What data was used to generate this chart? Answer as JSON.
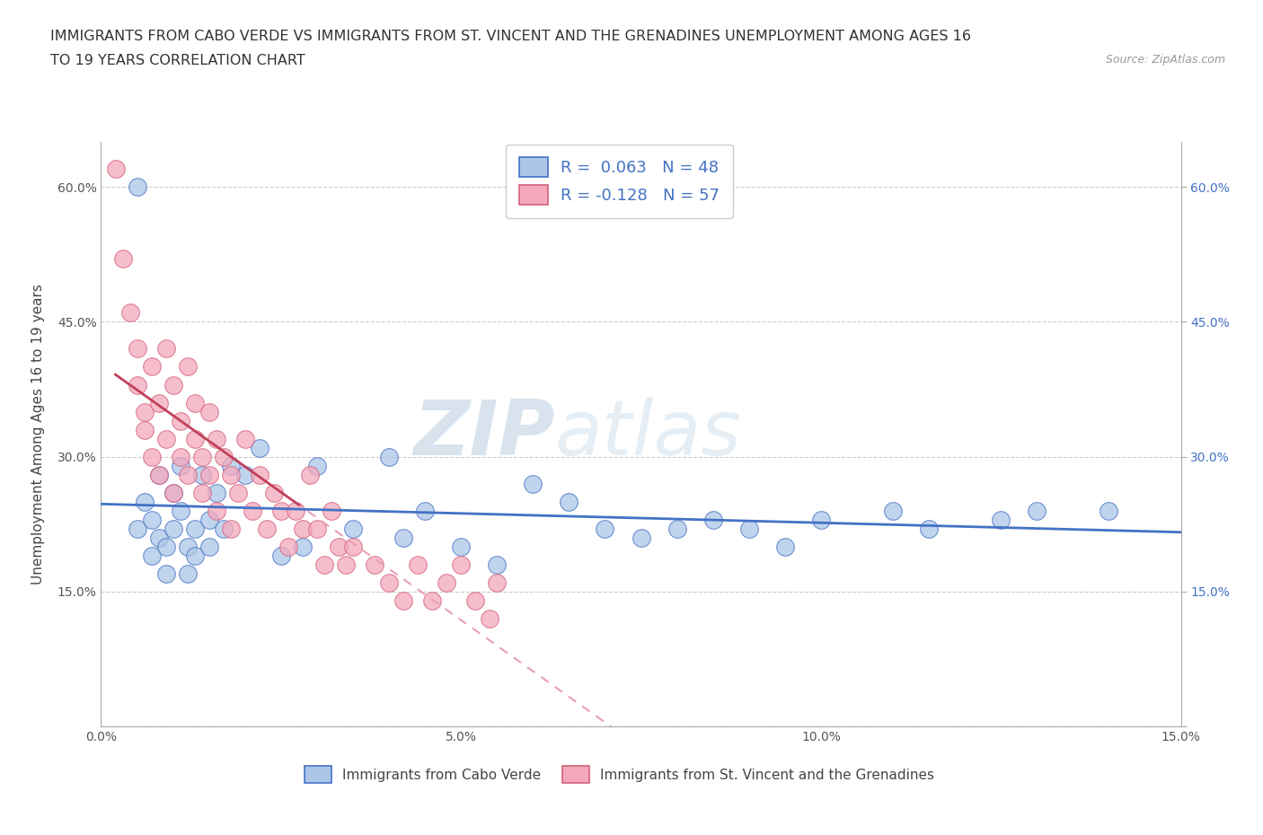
{
  "title_line1": "IMMIGRANTS FROM CABO VERDE VS IMMIGRANTS FROM ST. VINCENT AND THE GRENADINES UNEMPLOYMENT AMONG AGES 16",
  "title_line2": "TO 19 YEARS CORRELATION CHART",
  "source": "Source: ZipAtlas.com",
  "ylabel": "Unemployment Among Ages 16 to 19 years",
  "xlim": [
    0.0,
    0.15
  ],
  "ylim": [
    0.0,
    0.65
  ],
  "xticks": [
    0.0,
    0.05,
    0.1,
    0.15
  ],
  "xticklabels": [
    "0.0%",
    "5.0%",
    "10.0%",
    "15.0%"
  ],
  "yticks": [
    0.0,
    0.15,
    0.3,
    0.45,
    0.6
  ],
  "yticklabels": [
    "",
    "15.0%",
    "30.0%",
    "45.0%",
    "60.0%"
  ],
  "watermark_zip": "ZIP",
  "watermark_atlas": "atlas",
  "cabo_verde_R": 0.063,
  "cabo_verde_N": 48,
  "stv_R": -0.128,
  "stv_N": 57,
  "cabo_verde_color": "#adc6e8",
  "stv_color": "#f4a8bc",
  "trend_cabo_color": "#4472c4",
  "trend_stv_solid_color": "#c0415a",
  "trend_stv_dash_color": "#e8a0b0",
  "cabo_verde_x": [
    0.005,
    0.005,
    0.006,
    0.007,
    0.007,
    0.008,
    0.008,
    0.009,
    0.009,
    0.01,
    0.01,
    0.011,
    0.011,
    0.012,
    0.012,
    0.013,
    0.013,
    0.014,
    0.015,
    0.015,
    0.016,
    0.017,
    0.018,
    0.02,
    0.022,
    0.025,
    0.028,
    0.03,
    0.035,
    0.04,
    0.042,
    0.045,
    0.05,
    0.055,
    0.06,
    0.065,
    0.07,
    0.075,
    0.08,
    0.085,
    0.09,
    0.095,
    0.1,
    0.11,
    0.115,
    0.125,
    0.13,
    0.14
  ],
  "cabo_verde_y": [
    0.6,
    0.22,
    0.25,
    0.23,
    0.19,
    0.28,
    0.21,
    0.2,
    0.17,
    0.26,
    0.22,
    0.29,
    0.24,
    0.2,
    0.17,
    0.22,
    0.19,
    0.28,
    0.23,
    0.2,
    0.26,
    0.22,
    0.29,
    0.28,
    0.31,
    0.19,
    0.2,
    0.29,
    0.22,
    0.3,
    0.21,
    0.24,
    0.2,
    0.18,
    0.27,
    0.25,
    0.22,
    0.21,
    0.22,
    0.23,
    0.22,
    0.2,
    0.23,
    0.24,
    0.22,
    0.23,
    0.24,
    0.24
  ],
  "stv_x": [
    0.002,
    0.003,
    0.004,
    0.005,
    0.005,
    0.006,
    0.006,
    0.007,
    0.007,
    0.008,
    0.008,
    0.009,
    0.009,
    0.01,
    0.01,
    0.011,
    0.011,
    0.012,
    0.012,
    0.013,
    0.013,
    0.014,
    0.014,
    0.015,
    0.015,
    0.016,
    0.016,
    0.017,
    0.018,
    0.018,
    0.019,
    0.02,
    0.021,
    0.022,
    0.023,
    0.024,
    0.025,
    0.026,
    0.027,
    0.028,
    0.029,
    0.03,
    0.031,
    0.032,
    0.033,
    0.034,
    0.035,
    0.038,
    0.04,
    0.042,
    0.044,
    0.046,
    0.048,
    0.05,
    0.052,
    0.054,
    0.055
  ],
  "stv_y": [
    0.62,
    0.52,
    0.46,
    0.42,
    0.38,
    0.35,
    0.33,
    0.4,
    0.3,
    0.36,
    0.28,
    0.42,
    0.32,
    0.38,
    0.26,
    0.34,
    0.3,
    0.4,
    0.28,
    0.36,
    0.32,
    0.3,
    0.26,
    0.35,
    0.28,
    0.32,
    0.24,
    0.3,
    0.28,
    0.22,
    0.26,
    0.32,
    0.24,
    0.28,
    0.22,
    0.26,
    0.24,
    0.2,
    0.24,
    0.22,
    0.28,
    0.22,
    0.18,
    0.24,
    0.2,
    0.18,
    0.2,
    0.18,
    0.16,
    0.14,
    0.18,
    0.14,
    0.16,
    0.18,
    0.14,
    0.12,
    0.16
  ],
  "legend_cabo_label": "Immigrants from Cabo Verde",
  "legend_stv_label": "Immigrants from St. Vincent and the Grenadines",
  "background_color": "#ffffff",
  "grid_color": "#cccccc"
}
